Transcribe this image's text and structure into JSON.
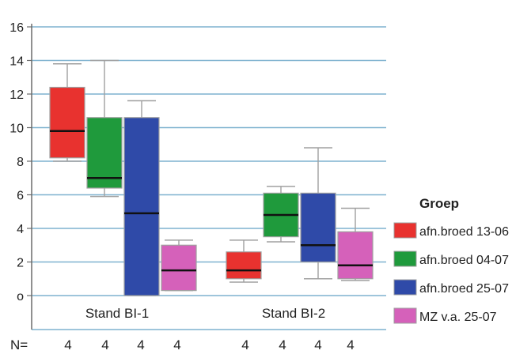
{
  "chart_data": {
    "type": "boxplot",
    "title": "",
    "xlabel": "",
    "ylabel": "",
    "ylim": [
      0,
      16
    ],
    "yticks": [
      0,
      2,
      4,
      6,
      8,
      10,
      12,
      14,
      16
    ],
    "ytick_labels": [
      "o",
      "2",
      "4",
      "6",
      "8",
      "10",
      "12",
      "14",
      "16"
    ],
    "grid": "horizontal",
    "categories": [
      "Stand BI-1",
      "Stand BI-2"
    ],
    "legend": {
      "title": "Groep",
      "placement": "right"
    },
    "series": [
      {
        "name": "afn.broed 13-06",
        "color": "#e8322f",
        "boxes": [
          {
            "min": 8.0,
            "q1": 8.2,
            "median": 9.8,
            "q3": 12.4,
            "max": 13.8
          },
          {
            "min": 0.8,
            "q1": 1.0,
            "median": 1.5,
            "q3": 2.6,
            "max": 3.3
          }
        ]
      },
      {
        "name": "afn.broed 04-07",
        "color": "#1f9a3c",
        "boxes": [
          {
            "min": 5.9,
            "q1": 6.4,
            "median": 7.0,
            "q3": 10.6,
            "max": 14.0
          },
          {
            "min": 3.2,
            "q1": 3.5,
            "median": 4.8,
            "q3": 6.1,
            "max": 6.5
          }
        ]
      },
      {
        "name": "afn.broed 25-07",
        "color": "#2f4aa8",
        "boxes": [
          {
            "min": 0.0,
            "q1": 0.0,
            "median": 4.9,
            "q3": 10.6,
            "max": 11.6
          },
          {
            "min": 1.0,
            "q1": 2.0,
            "median": 3.0,
            "q3": 6.1,
            "max": 8.8
          }
        ]
      },
      {
        "name": "MZ v.a. 25-07",
        "color": "#d561ba",
        "boxes": [
          {
            "min": 0.3,
            "q1": 0.3,
            "median": 1.5,
            "q3": 3.0,
            "max": 3.3
          },
          {
            "min": 0.9,
            "q1": 1.0,
            "median": 1.8,
            "q3": 3.8,
            "max": 5.2
          }
        ]
      }
    ],
    "n_label": "N=",
    "n_values": [
      "4",
      "4",
      "4",
      "4",
      "4",
      "4",
      "4",
      "4"
    ]
  },
  "colors": {
    "grid": "#7fb2cf",
    "axis": "#6b6b6b",
    "whisker": "#a0a0a0",
    "median": "#111111"
  }
}
